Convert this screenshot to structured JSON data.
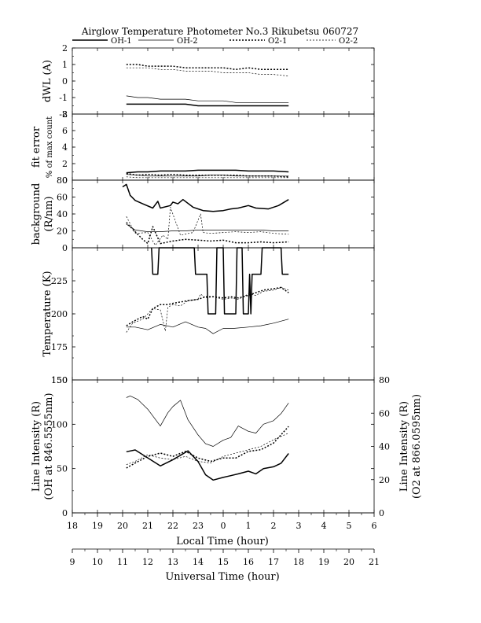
{
  "title": "Airglow Temperature Photometer No.3   Rikubetsu   060727",
  "legend": [
    {
      "name": "OH-1",
      "style": "thick"
    },
    {
      "name": "OH-2",
      "style": "thin"
    },
    {
      "name": "O2-1",
      "style": "thick-dotted"
    },
    {
      "name": "O2-2",
      "style": "thin-dotted"
    }
  ],
  "x_axes": {
    "local": {
      "label": "Local Time (hour)",
      "ticks": [
        "18",
        "19",
        "20",
        "21",
        "22",
        "23",
        "0",
        "1",
        "2",
        "3",
        "4",
        "5",
        "6"
      ]
    },
    "universal": {
      "label": "Universal Time (hour)",
      "ticks": [
        "9",
        "10",
        "11",
        "12",
        "13",
        "14",
        "15",
        "16",
        "17",
        "18",
        "19",
        "20",
        "21"
      ]
    }
  },
  "chart_data": [
    {
      "type": "line",
      "panel": "dWL",
      "ylabel": "dWL (A)",
      "ylim": [
        -2,
        2
      ],
      "yticks": [
        "2",
        "1",
        "0",
        "-1",
        "-2"
      ],
      "x": [
        11.15,
        11.6,
        12,
        12.5,
        13,
        13.5,
        14,
        14.5,
        15,
        15.5,
        16,
        16.5,
        17,
        17.6
      ],
      "series": [
        {
          "name": "OH-1",
          "values": [
            -1.4,
            -1.4,
            -1.4,
            -1.4,
            -1.4,
            -1.4,
            -1.5,
            -1.5,
            -1.5,
            -1.5,
            -1.5,
            -1.5,
            -1.5,
            -1.5
          ]
        },
        {
          "name": "OH-2",
          "values": [
            -0.9,
            -1.0,
            -1.0,
            -1.1,
            -1.1,
            -1.1,
            -1.2,
            -1.2,
            -1.2,
            -1.3,
            -1.3,
            -1.3,
            -1.3,
            -1.3
          ]
        },
        {
          "name": "O2-1",
          "values": [
            1.0,
            1.0,
            0.9,
            0.9,
            0.9,
            0.8,
            0.8,
            0.8,
            0.8,
            0.7,
            0.8,
            0.7,
            0.7,
            0.7
          ]
        },
        {
          "name": "O2-2",
          "values": [
            0.8,
            0.8,
            0.8,
            0.7,
            0.7,
            0.6,
            0.6,
            0.6,
            0.5,
            0.5,
            0.5,
            0.4,
            0.4,
            0.3
          ]
        }
      ]
    },
    {
      "type": "line",
      "panel": "fit-error",
      "ylabel": "fit error",
      "ylabel2": "% of max count",
      "ylim": [
        0,
        8
      ],
      "yticks": [
        "8",
        "6",
        "4",
        "2",
        "0"
      ],
      "x": [
        11.15,
        11.6,
        12,
        12.5,
        13,
        13.5,
        14,
        14.5,
        15,
        15.5,
        16,
        16.5,
        17,
        17.6
      ],
      "series": [
        {
          "name": "OH-1",
          "values": [
            0.9,
            1.0,
            1.0,
            1.1,
            1.1,
            1.1,
            1.2,
            1.2,
            1.2,
            1.2,
            1.1,
            1.1,
            1.1,
            1.0
          ]
        },
        {
          "name": "OH-2",
          "values": [
            0.7,
            0.6,
            0.5,
            0.5,
            0.5,
            0.5,
            0.5,
            0.6,
            0.6,
            0.5,
            0.5,
            0.5,
            0.5,
            0.5
          ]
        },
        {
          "name": "O2-1",
          "values": [
            0.8,
            0.6,
            0.7,
            0.6,
            0.7,
            0.6,
            0.6,
            0.6,
            0.6,
            0.6,
            0.5,
            0.5,
            0.5,
            0.4
          ]
        },
        {
          "name": "O2-2",
          "values": [
            0.4,
            0.3,
            0.3,
            0.3,
            0.3,
            0.3,
            0.3,
            0.3,
            0.3,
            0.3,
            0.3,
            0.3,
            0.3,
            0.3
          ]
        }
      ]
    },
    {
      "type": "line",
      "panel": "background",
      "ylabel": "background",
      "ylabel2": "(R/nm)",
      "ylim": [
        0,
        80
      ],
      "yticks": [
        "80",
        "60",
        "40",
        "20",
        "0"
      ],
      "series": [
        {
          "name": "OH-1",
          "x": [
            11.0,
            11.15,
            11.3,
            11.5,
            11.8,
            12.2,
            12.4,
            12.5,
            12.9,
            13.0,
            13.2,
            13.4,
            13.8,
            14.2,
            14.6,
            15.0,
            15.3,
            15.6,
            16.0,
            16.3,
            16.8,
            17.2,
            17.6
          ],
          "values": [
            72,
            75,
            62,
            56,
            52,
            47,
            55,
            47,
            50,
            54,
            52,
            57,
            48,
            44,
            43,
            44,
            46,
            47,
            50,
            47,
            46,
            50,
            57
          ]
        },
        {
          "name": "OH-2",
          "x": [
            11.15,
            11.5,
            12.0,
            12.5,
            13.0,
            13.5,
            14.0,
            14.5,
            15.0,
            15.5,
            16.0,
            16.5,
            17.0,
            17.6
          ],
          "values": [
            28,
            21,
            19,
            19,
            20,
            20,
            21,
            21,
            21,
            21,
            21,
            21,
            20,
            20
          ]
        },
        {
          "name": "O2-1",
          "x": [
            11.15,
            11.4,
            11.8,
            12.0,
            12.2,
            12.5,
            13.0,
            13.5,
            14.0,
            14.5,
            15.0,
            15.5,
            16.0,
            16.5,
            17.0,
            17.6
          ],
          "values": [
            30,
            22,
            10,
            5,
            25,
            5,
            8,
            10,
            9,
            8,
            9,
            6,
            6,
            7,
            6,
            7
          ]
        },
        {
          "name": "O2-2",
          "x": [
            11.15,
            11.5,
            12.0,
            12.3,
            12.6,
            12.8,
            12.9,
            13.3,
            13.8,
            14.1,
            14.2,
            14.5,
            15.0,
            15.5,
            16.0,
            16.5,
            17.0,
            17.6
          ],
          "values": [
            37,
            17,
            18,
            3,
            15,
            10,
            48,
            15,
            18,
            40,
            18,
            17,
            18,
            19,
            18,
            19,
            17,
            16
          ]
        }
      ]
    },
    {
      "type": "line",
      "panel": "temperature",
      "ylabel": "Temperature (K)",
      "ylim": [
        150,
        250
      ],
      "yticks": [
        "225",
        "200",
        "175",
        "150"
      ],
      "series": [
        {
          "name": "OH-1",
          "x": [
            12.15,
            12.2,
            12.4,
            12.45,
            13.85,
            13.9,
            14.35,
            14.4,
            14.7,
            14.75,
            15.0,
            15.05,
            15.5,
            15.55,
            15.75,
            15.8,
            16.0,
            16.05,
            16.1,
            16.15,
            16.5,
            16.55,
            17.3,
            17.35,
            17.6
          ],
          "values": [
            250,
            230,
            230,
            250,
            250,
            230,
            230,
            200,
            200,
            250,
            250,
            200,
            200,
            250,
            250,
            200,
            200,
            230,
            200,
            230,
            230,
            250,
            250,
            230,
            230
          ]
        },
        {
          "name": "OH-2",
          "x": [
            11.15,
            11.5,
            12.0,
            12.5,
            13.0,
            13.5,
            14.0,
            14.3,
            14.6,
            15.0,
            15.4,
            16.0,
            16.5,
            17.0,
            17.6
          ],
          "values": [
            190,
            190,
            188,
            192,
            190,
            194,
            190,
            189,
            185,
            189,
            189,
            190,
            191,
            193,
            196
          ]
        },
        {
          "name": "O2-1",
          "x": [
            11.15,
            11.4,
            11.8,
            12.0,
            12.2,
            12.5,
            12.8,
            13.0,
            13.3,
            13.6,
            14.0,
            14.3,
            14.6,
            15.0,
            15.3,
            15.6,
            16.0,
            16.3,
            16.6,
            17.0,
            17.3,
            17.6
          ],
          "values": [
            191,
            194,
            198,
            196,
            204,
            207,
            207,
            208,
            209,
            210,
            211,
            213,
            213,
            212,
            213,
            212,
            214,
            216,
            218,
            219,
            220,
            216
          ]
        },
        {
          "name": "O2-2",
          "x": [
            11.15,
            11.4,
            11.8,
            12.0,
            12.2,
            12.5,
            12.7,
            12.8,
            13.0,
            13.3,
            13.6,
            14.0,
            14.1,
            14.3,
            14.6,
            15.0,
            15.3,
            15.6,
            16.0,
            16.3,
            16.6,
            17.0,
            17.3,
            17.6
          ],
          "values": [
            186,
            193,
            196,
            200,
            204,
            203,
            187,
            205,
            207,
            206,
            210,
            211,
            215,
            212,
            213,
            211,
            212,
            211,
            215,
            214,
            217,
            218,
            220,
            218
          ]
        }
      ]
    },
    {
      "type": "line",
      "panel": "line-intensity",
      "ylabel": "Line Intensity (R)",
      "ylabel2": "(OH at 846.5555nm)",
      "ylabel_right": "Line Intensity (R)",
      "ylabel_right2": "(O2 at 866.0595nm)",
      "ylim": [
        0,
        150
      ],
      "ylim_right": [
        0,
        80
      ],
      "yticks": [
        "150",
        "100",
        "50",
        "0"
      ],
      "yticks_right": [
        "80",
        "60",
        "40",
        "20",
        "0"
      ],
      "series": [
        {
          "name": "OH-1",
          "axis": "left",
          "x": [
            11.15,
            11.5,
            12.0,
            12.5,
            13.0,
            13.3,
            13.6,
            14.0,
            14.3,
            14.6,
            15.0,
            15.3,
            15.6,
            16.0,
            16.3,
            16.6,
            17.0,
            17.3,
            17.6
          ],
          "values": [
            69,
            71,
            62,
            53,
            60,
            65,
            70,
            58,
            43,
            37,
            40,
            42,
            44,
            47,
            44,
            50,
            52,
            56,
            67
          ]
        },
        {
          "name": "OH-2",
          "axis": "left",
          "x": [
            11.15,
            11.3,
            11.6,
            12.0,
            12.5,
            12.8,
            13.0,
            13.3,
            13.6,
            14.0,
            14.3,
            14.6,
            15.0,
            15.3,
            15.6,
            16.0,
            16.3,
            16.6,
            17.0,
            17.3,
            17.6
          ],
          "values": [
            130,
            132,
            128,
            117,
            98,
            113,
            120,
            127,
            105,
            88,
            78,
            75,
            82,
            85,
            98,
            92,
            90,
            100,
            104,
            112,
            124
          ]
        },
        {
          "name": "O2-1",
          "axis": "right",
          "x": [
            11.15,
            11.5,
            12.0,
            12.5,
            13.0,
            13.5,
            14.0,
            14.5,
            15.0,
            15.5,
            16.0,
            16.5,
            17.0,
            17.6
          ],
          "values": [
            27,
            30,
            34,
            36,
            34,
            37,
            33,
            31,
            33,
            33,
            37,
            38,
            42,
            52
          ]
        },
        {
          "name": "O2-2",
          "axis": "right",
          "x": [
            11.15,
            11.5,
            12.0,
            12.5,
            13.0,
            13.5,
            14.0,
            14.5,
            15.0,
            15.5,
            16.0,
            16.5,
            17.0,
            17.6
          ],
          "values": [
            29,
            31,
            35,
            33,
            32,
            34,
            31,
            30,
            34,
            36,
            38,
            40,
            44,
            48
          ]
        }
      ]
    }
  ]
}
